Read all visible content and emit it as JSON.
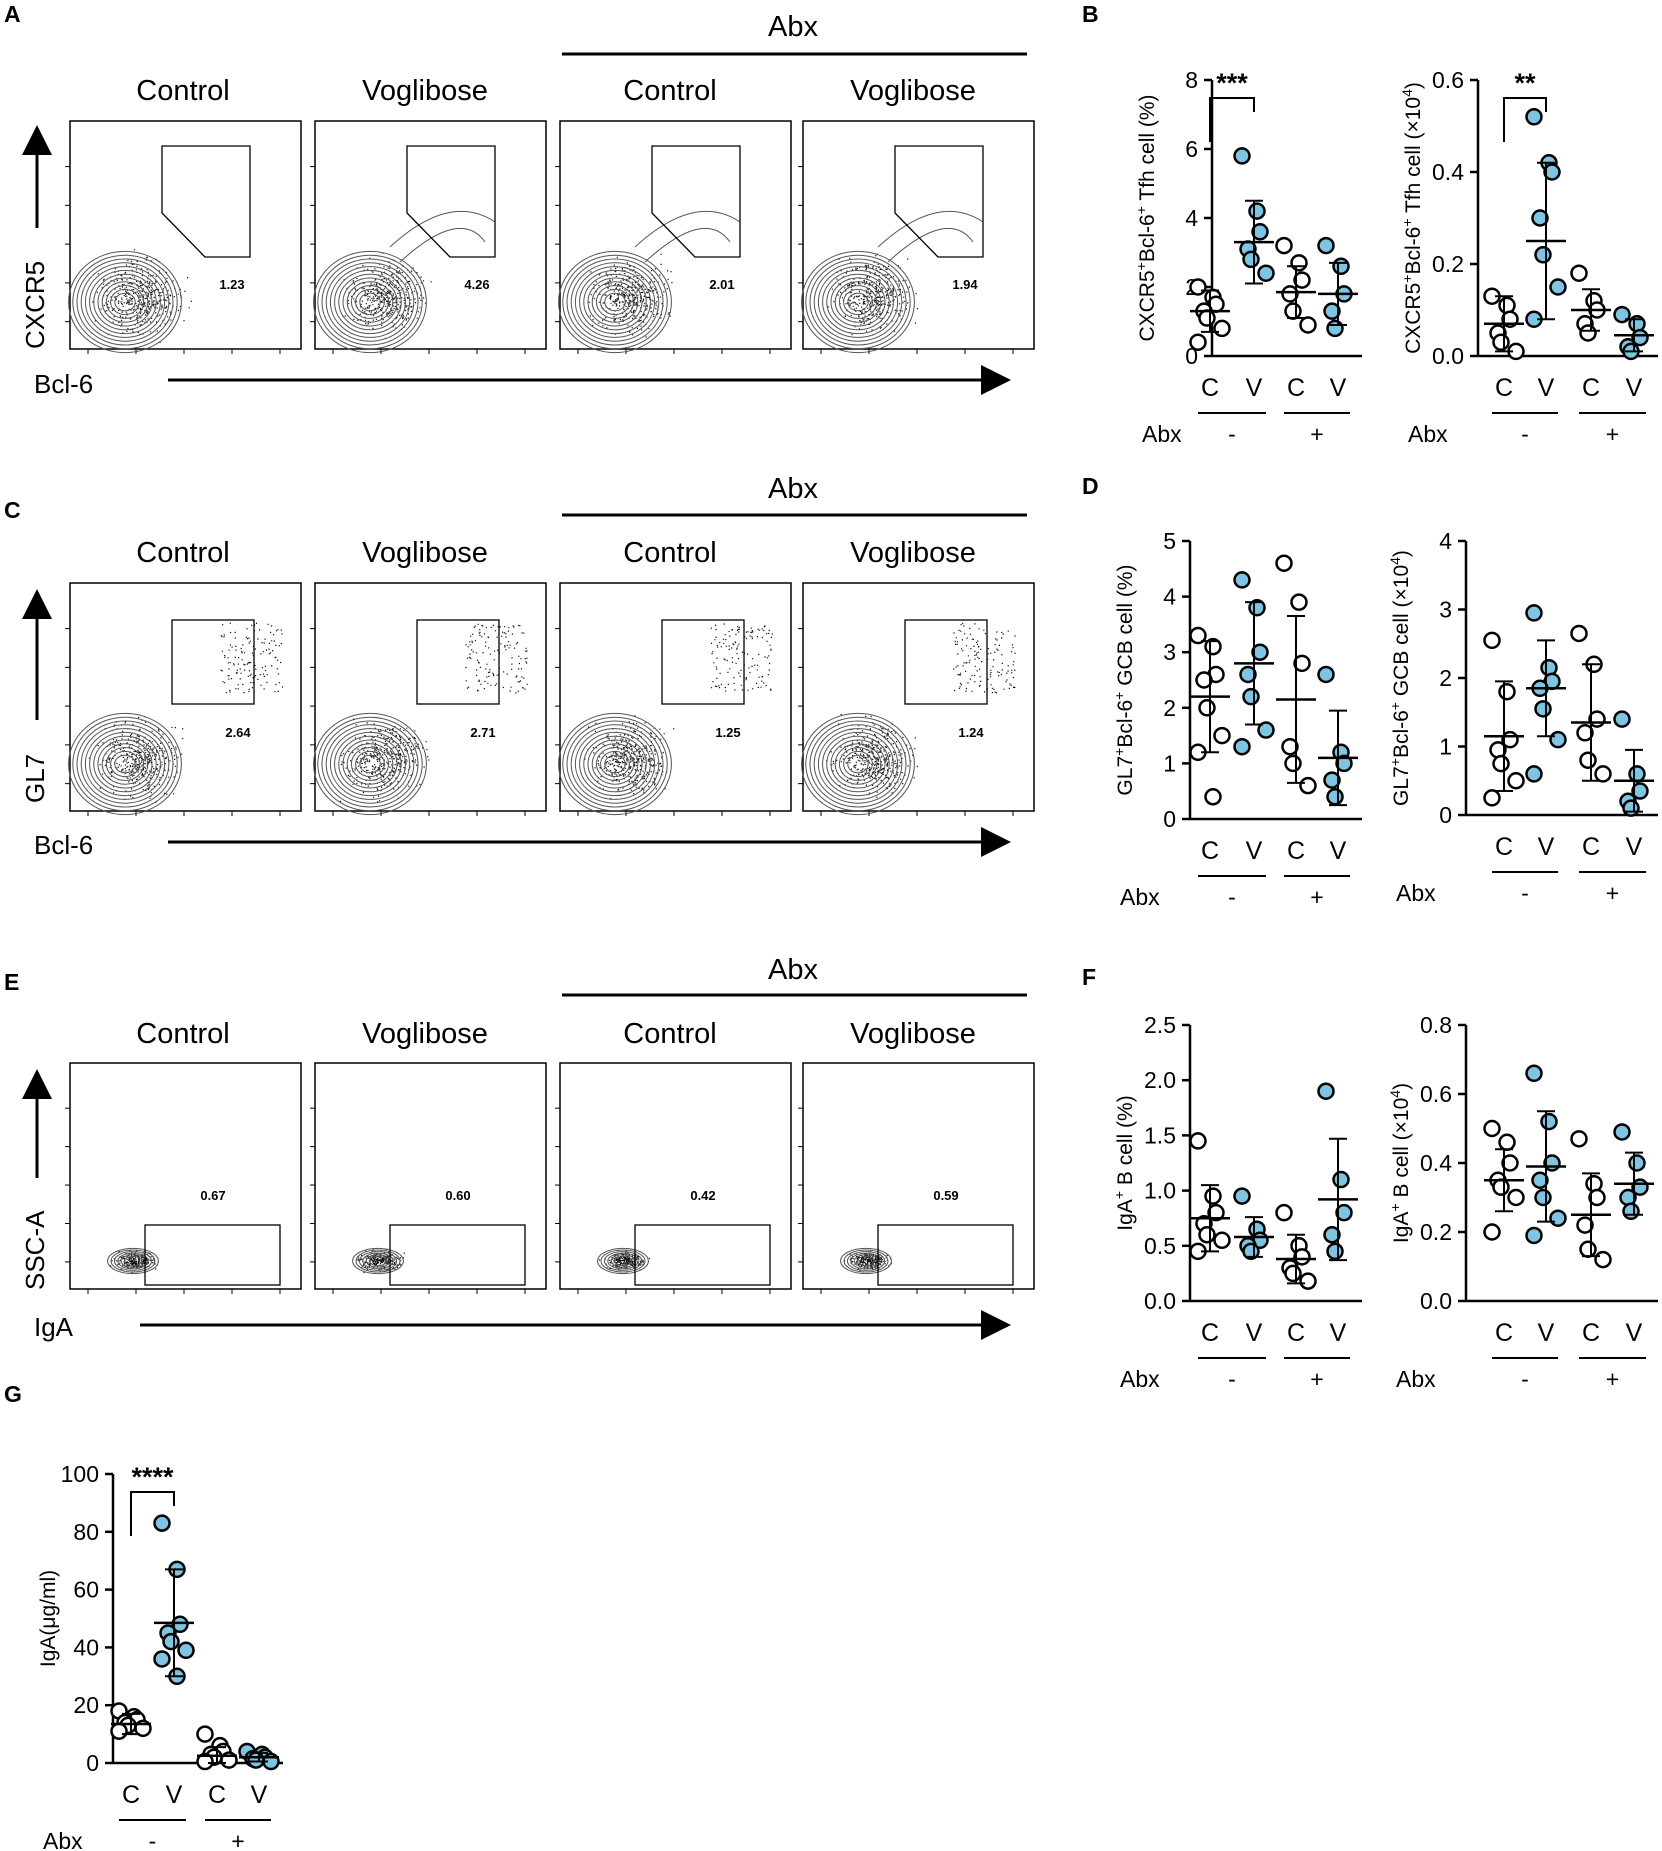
{
  "colors": {
    "ctrl_fill": "#ffffff",
    "vog_fill": "#7cc6e3",
    "ink": "#000000",
    "contour": "#555555"
  },
  "panels": {
    "A": {
      "letter": "A",
      "x_label": "Bcl-6",
      "y_label": "CXCR5",
      "abx_header": "Abx",
      "columns": [
        "Control",
        "Voglibose",
        "Control",
        "Voglibose"
      ],
      "percents": [
        "1.23",
        "4.26",
        "2.01",
        "1.94"
      ]
    },
    "C": {
      "letter": "C",
      "x_label": "Bcl-6",
      "y_label": "GL7",
      "abx_header": "Abx",
      "columns": [
        "Control",
        "Voglibose",
        "Control",
        "Voglibose"
      ],
      "percents": [
        "2.64",
        "2.71",
        "1.25",
        "1.24"
      ]
    },
    "E": {
      "letter": "E",
      "x_label": "IgA",
      "y_label": "SSC-A",
      "abx_header": "Abx",
      "columns": [
        "Control",
        "Voglibose",
        "Control",
        "Voglibose"
      ],
      "percents": [
        "0.67",
        "0.60",
        "0.42",
        "0.59"
      ]
    }
  },
  "letters": {
    "B": "B",
    "D": "D",
    "F": "F",
    "G": "G"
  },
  "chart_data": [
    {
      "id": "B1",
      "type": "scatter",
      "ylabel_main": "CXCR5",
      "ylabel_sup1": "+",
      "ylabel_mid": "Bcl-6",
      "ylabel_sup2": "+",
      "ylabel_end": " Tfh cell (%)",
      "ylim": [
        0,
        8
      ],
      "yticks": [
        "0",
        "2",
        "4",
        "6",
        "8"
      ],
      "tick_values": [
        0,
        2,
        4,
        6,
        8
      ],
      "groups": [
        "C",
        "V",
        "C",
        "V"
      ],
      "abx_label": "Abx",
      "abx_values": [
        "-",
        "+"
      ],
      "means": [
        1.3,
        3.3,
        1.85,
        1.8
      ],
      "sd": [
        0.6,
        1.2,
        0.75,
        0.9
      ],
      "points": [
        [
          2.0,
          1.7,
          1.5,
          1.3,
          1.1,
          0.8,
          0.4
        ],
        [
          5.8,
          4.2,
          3.6,
          3.1,
          2.8,
          2.4
        ],
        [
          3.2,
          2.7,
          2.2,
          1.8,
          1.3,
          0.9
        ],
        [
          3.2,
          2.6,
          1.8,
          1.3,
          0.8
        ]
      ],
      "significance": [
        {
          "from": 0,
          "to": 1,
          "label": "***"
        }
      ]
    },
    {
      "id": "B2",
      "type": "scatter",
      "ylabel_main": "CXCR5",
      "ylabel_sup1": "+",
      "ylabel_mid": "Bcl-6",
      "ylabel_sup2": "+",
      "ylabel_end": " Tfh cell (×10",
      "ylabel_sup3": "4",
      "ylabel_close": ")",
      "ylim": [
        0,
        0.6
      ],
      "yticks": [
        "0.0",
        "0.2",
        "0.4",
        "0.6"
      ],
      "tick_values": [
        0,
        0.2,
        0.4,
        0.6
      ],
      "groups": [
        "C",
        "V",
        "C",
        "V"
      ],
      "abx_label": "Abx",
      "abx_values": [
        "-",
        "+"
      ],
      "means": [
        0.07,
        0.25,
        0.1,
        0.045
      ],
      "sd": [
        0.06,
        0.17,
        0.045,
        0.035
      ],
      "points": [
        [
          0.13,
          0.11,
          0.08,
          0.05,
          0.03,
          0.01
        ],
        [
          0.52,
          0.42,
          0.4,
          0.3,
          0.22,
          0.15,
          0.08
        ],
        [
          0.18,
          0.12,
          0.1,
          0.07,
          0.05
        ],
        [
          0.09,
          0.07,
          0.04,
          0.02,
          0.01
        ]
      ],
      "significance": [
        {
          "from": 0,
          "to": 1,
          "label": "**"
        }
      ]
    },
    {
      "id": "D1",
      "type": "scatter",
      "ylabel_main": "GL7",
      "ylabel_sup1": "+",
      "ylabel_mid": "Bcl-6",
      "ylabel_sup2": "+",
      "ylabel_end": " GCB cell (%)",
      "ylim": [
        0,
        5
      ],
      "yticks": [
        "0",
        "1",
        "2",
        "3",
        "4",
        "5"
      ],
      "tick_values": [
        0,
        1,
        2,
        3,
        4,
        5
      ],
      "groups": [
        "C",
        "V",
        "C",
        "V"
      ],
      "abx_label": "Abx",
      "abx_values": [
        "-",
        "+"
      ],
      "means": [
        2.2,
        2.8,
        2.15,
        1.1
      ],
      "sd": [
        1.0,
        1.1,
        1.5,
        0.85
      ],
      "points": [
        [
          3.3,
          3.1,
          2.6,
          2.5,
          2.0,
          1.5,
          1.2,
          0.4
        ],
        [
          4.3,
          3.8,
          3.0,
          2.6,
          2.2,
          1.6,
          1.3
        ],
        [
          4.6,
          3.9,
          2.8,
          1.3,
          1.0,
          0.6
        ],
        [
          2.6,
          1.2,
          1.0,
          0.7,
          0.4
        ]
      ],
      "significance": []
    },
    {
      "id": "D2",
      "type": "scatter",
      "ylabel_main": "GL7",
      "ylabel_sup1": "+",
      "ylabel_mid": "Bcl-6",
      "ylabel_sup2": "+",
      "ylabel_end": " GCB cell (×10",
      "ylabel_sup3": "4",
      "ylabel_close": ")",
      "ylim": [
        0,
        4
      ],
      "yticks": [
        "0",
        "1",
        "2",
        "3",
        "4"
      ],
      "tick_values": [
        0,
        1,
        2,
        3,
        4
      ],
      "groups": [
        "C",
        "V",
        "C",
        "V"
      ],
      "abx_label": "Abx",
      "abx_values": [
        "-",
        "+"
      ],
      "means": [
        1.15,
        1.85,
        1.35,
        0.5
      ],
      "sd": [
        0.8,
        0.7,
        0.85,
        0.45
      ],
      "points": [
        [
          2.55,
          1.8,
          1.1,
          0.95,
          0.75,
          0.5,
          0.25
        ],
        [
          2.95,
          2.15,
          1.95,
          1.85,
          1.55,
          1.1,
          0.6
        ],
        [
          2.65,
          2.2,
          1.4,
          1.2,
          0.8,
          0.6
        ],
        [
          1.4,
          0.6,
          0.35,
          0.2,
          0.1
        ]
      ],
      "significance": []
    },
    {
      "id": "F1",
      "type": "scatter",
      "ylabel_main": "IgA",
      "ylabel_sup1": "+",
      "ylabel_end": " B cell (%)",
      "ylim": [
        0,
        2.5
      ],
      "yticks": [
        "0.0",
        "0.5",
        "1.0",
        "1.5",
        "2.0",
        "2.5"
      ],
      "tick_values": [
        0,
        0.5,
        1,
        1.5,
        2,
        2.5
      ],
      "groups": [
        "C",
        "V",
        "C",
        "V"
      ],
      "abx_label": "Abx",
      "abx_values": [
        "-",
        "+"
      ],
      "means": [
        0.75,
        0.58,
        0.38,
        0.92
      ],
      "sd": [
        0.3,
        0.18,
        0.22,
        0.55
      ],
      "points": [
        [
          1.45,
          0.95,
          0.8,
          0.7,
          0.6,
          0.55,
          0.45
        ],
        [
          0.95,
          0.65,
          0.55,
          0.5,
          0.45
        ],
        [
          0.8,
          0.5,
          0.4,
          0.3,
          0.25,
          0.18
        ],
        [
          1.9,
          1.1,
          0.8,
          0.6,
          0.45
        ]
      ],
      "significance": []
    },
    {
      "id": "F2",
      "type": "scatter",
      "ylabel_main": "IgA",
      "ylabel_sup1": "+",
      "ylabel_end": " B cell (×10",
      "ylabel_sup3": "4",
      "ylabel_close": ")",
      "ylim": [
        0,
        0.8
      ],
      "yticks": [
        "0.0",
        "0.2",
        "0.4",
        "0.6",
        "0.8"
      ],
      "tick_values": [
        0,
        0.2,
        0.4,
        0.6,
        0.8
      ],
      "groups": [
        "C",
        "V",
        "C",
        "V"
      ],
      "abx_label": "Abx",
      "abx_values": [
        "-",
        "+"
      ],
      "means": [
        0.35,
        0.39,
        0.25,
        0.34
      ],
      "sd": [
        0.09,
        0.16,
        0.12,
        0.09
      ],
      "points": [
        [
          0.5,
          0.46,
          0.4,
          0.35,
          0.33,
          0.3,
          0.2
        ],
        [
          0.66,
          0.52,
          0.4,
          0.35,
          0.3,
          0.24,
          0.19
        ],
        [
          0.47,
          0.34,
          0.3,
          0.22,
          0.15,
          0.12
        ],
        [
          0.49,
          0.4,
          0.33,
          0.3,
          0.26
        ]
      ],
      "significance": []
    },
    {
      "id": "G",
      "type": "scatter",
      "ylabel_main": "IgA(μg/ml)",
      "ylim": [
        0,
        100
      ],
      "yticks": [
        "0",
        "20",
        "40",
        "60",
        "80",
        "100"
      ],
      "tick_values": [
        0,
        20,
        40,
        60,
        80,
        100
      ],
      "groups": [
        "C",
        "V",
        "C",
        "V"
      ],
      "abx_label": "Abx",
      "abx_values": [
        "-",
        "+"
      ],
      "means": [
        13.5,
        48.5,
        2.5,
        2.0
      ],
      "sd": [
        3.5,
        18.5,
        3.0,
        1.5
      ],
      "points": [
        [
          18,
          16,
          15,
          14,
          13,
          12,
          11
        ],
        [
          83,
          67,
          48,
          45,
          42,
          39,
          36,
          30
        ],
        [
          10,
          6,
          4,
          3,
          2,
          1,
          0.5
        ],
        [
          4,
          3,
          2,
          1.5,
          1,
          0.5
        ]
      ],
      "significance": [
        {
          "from": 0,
          "to": 1,
          "label": "****"
        }
      ]
    }
  ]
}
